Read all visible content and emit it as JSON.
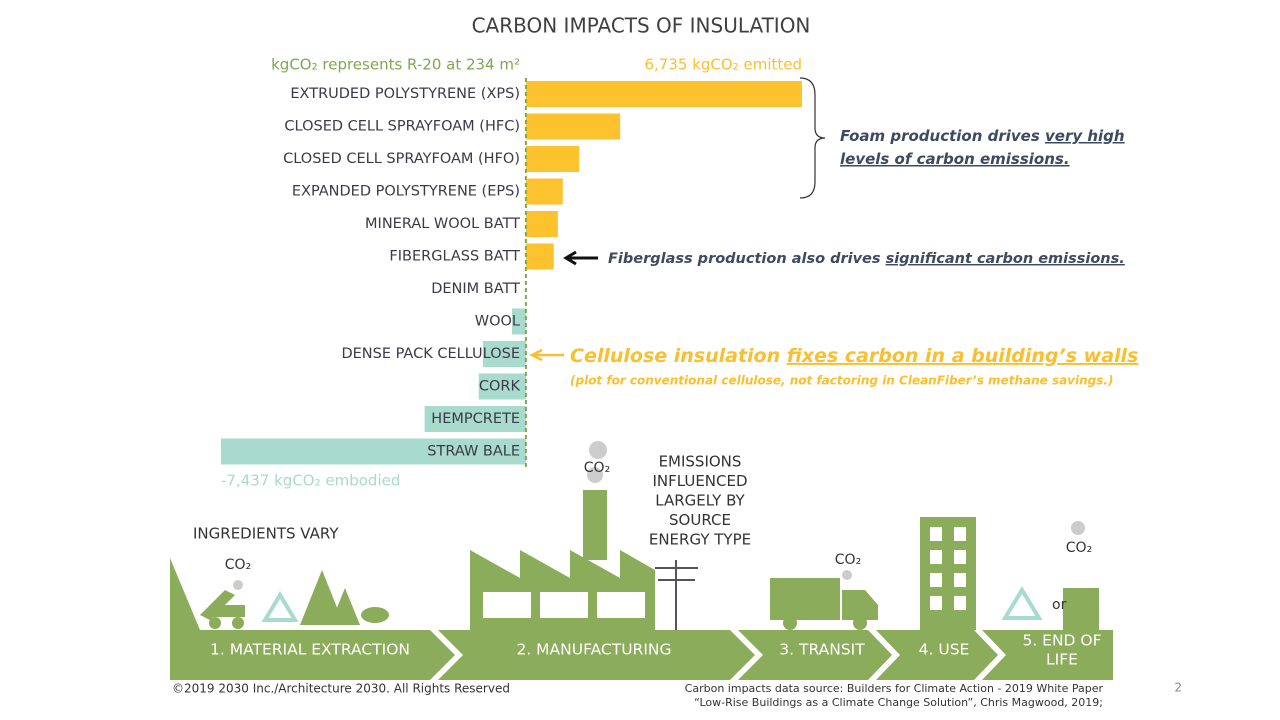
{
  "chart_data": {
    "type": "bar",
    "orientation": "horizontal",
    "title": "CARBON IMPACTS OF INSULATION",
    "subtitle": "kgCO₂ represents R-20 at 234 m²",
    "categories": [
      "EXTRUDED POLYSTYRENE (XPS)",
      "CLOSED CELL SPRAYFOAM (HFC)",
      "CLOSED CELL SPRAYFOAM (HFO)",
      "EXPANDED POLYSTYRENE (EPS)",
      "MINERAL WOOL BATT",
      "FIBERGLASS BATT",
      "DENIM BATT",
      "WOOL",
      "DENSE PACK CELLULOSE",
      "CORK",
      "HEMPCRETE",
      "STRAW BALE"
    ],
    "values": [
      6735,
      2300,
      1300,
      900,
      780,
      680,
      0,
      -340,
      -1050,
      -1150,
      -2470,
      -7437
    ],
    "max_label": "6,735 kgCO₂ emitted",
    "min_label": "-7,437 kgCO₂ embodied",
    "xlim": [
      -7437,
      6735
    ],
    "positive_color": "#fcc32e",
    "negative_color": "#a8dacd",
    "zero_line_color": "#7ea850"
  },
  "annotations": {
    "foam": [
      [
        "Foam production drives ",
        "very high"
      ],
      [
        "levels of carbon emissions."
      ]
    ],
    "fiberglass": [
      "Fiberglass production also drives ",
      "significant carbon emissions."
    ],
    "cellulose": [
      "Cellulose insulation ",
      "fixes carbon in a building’s walls"
    ],
    "cellulose_note": "(plot for conventional cellulose, not factoring in CleanFiber’s methane savings.)"
  },
  "infographic": {
    "ingredients": "INGREDIENTS VARY",
    "emissions": [
      "EMISSIONS",
      "INFLUENCED",
      "LARGELY BY",
      "SOURCE",
      "ENERGY TYPE"
    ],
    "co2": [
      "CO₂",
      "CO₂",
      "CO₂",
      "CO₂"
    ],
    "or": "or",
    "stages": [
      [
        "1. MATERIAL EXTRACTION"
      ],
      [
        "2. MANUFACTURING"
      ],
      [
        "3. TRANSIT"
      ],
      [
        "4. USE"
      ],
      [
        "5. END OF",
        "LIFE"
      ]
    ]
  },
  "footer": {
    "copyright": "©2019 2030 Inc./Architecture 2030. All Rights Reserved",
    "source": [
      "Carbon impacts data source: Builders for Climate Action - 2019 White Paper",
      "“Low-Rise Buildings as a Climate Change Solution”, Chris Magwood, 2019;"
    ],
    "page": "2"
  }
}
